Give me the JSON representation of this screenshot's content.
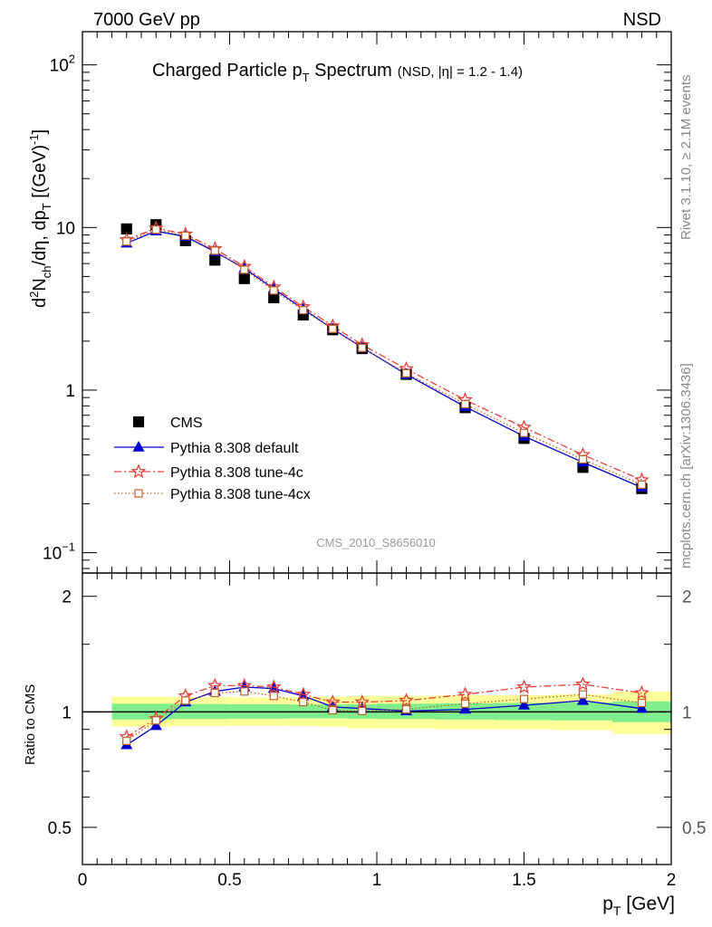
{
  "header": {
    "energy_label": "7000 GeV pp",
    "process_label": "NSD",
    "title_main": "Charged Particle p",
    "title_sub_T": "T",
    "title_tail": " Spectrum",
    "title_small": "(NSD, |η| = 1.2 - 1.4)",
    "analysis_id": "CMS_2010_S8656010",
    "side_rivet": "Rivet 3.1.10, ≥ 2.1M events",
    "side_mcplots": "mcplots.cern.ch [arXiv:1306.3436]"
  },
  "chart_data": [
    {
      "type": "scatter",
      "title": "Charged Particle pT Spectrum (NSD, |η| = 1.2 - 1.4)",
      "xlabel": "p_T [GeV]",
      "ylabel": "d²N_ch/dη dp_T [(GeV)⁻¹]",
      "yscale": "log",
      "xlim": [
        0,
        2
      ],
      "ylim": [
        0.075,
        160
      ],
      "y_tick_labels": [
        "10^-1",
        "1",
        "10",
        "10^2"
      ],
      "legend_position": "lower-left",
      "x": [
        0.15,
        0.25,
        0.35,
        0.45,
        0.55,
        0.65,
        0.75,
        0.85,
        0.95,
        1.1,
        1.3,
        1.5,
        1.7,
        1.9
      ],
      "series": [
        {
          "name": "CMS",
          "style": "black-square",
          "color": "#000000",
          "values": [
            9.8,
            10.4,
            8.3,
            6.3,
            4.85,
            3.7,
            2.9,
            2.35,
            1.8,
            1.25,
            0.78,
            0.505,
            0.335,
            0.248
          ]
        },
        {
          "name": "Pythia 8.308 default",
          "style": "blue-triangle-solid",
          "color": "#0000cc",
          "values": [
            8.0,
            9.5,
            8.8,
            7.1,
            5.6,
            4.2,
            3.15,
            2.38,
            1.83,
            1.25,
            0.79,
            0.52,
            0.36,
            0.252
          ]
        },
        {
          "name": "Pythia 8.308 tune-4c",
          "style": "red-star-dashdot",
          "color": "#e8403c",
          "values": [
            8.4,
            9.9,
            9.1,
            7.4,
            5.75,
            4.3,
            3.25,
            2.48,
            1.9,
            1.35,
            0.87,
            0.59,
            0.4,
            0.28
          ]
        },
        {
          "name": "Pythia 8.308 tune-4cx",
          "style": "orange-open-square-dotted",
          "color": "#c0602a",
          "values": [
            8.2,
            9.7,
            8.9,
            7.2,
            5.5,
            4.1,
            3.1,
            2.38,
            1.82,
            1.27,
            0.82,
            0.545,
            0.375,
            0.262
          ]
        }
      ]
    },
    {
      "type": "line",
      "title": "",
      "xlabel": "p_T [GeV]",
      "ylabel": "Ratio to CMS",
      "xlim": [
        0,
        2
      ],
      "ylim": [
        0.4,
        2.3
      ],
      "yscale": "log",
      "x_tick_labels": [
        "0",
        "0.5",
        "1",
        "1.5",
        "2"
      ],
      "y_tick_labels": [
        "0.5",
        "1",
        "2"
      ],
      "x": [
        0.15,
        0.25,
        0.35,
        0.45,
        0.55,
        0.65,
        0.75,
        0.85,
        0.95,
        1.1,
        1.3,
        1.5,
        1.7,
        1.9
      ],
      "bands": {
        "bin_edges": [
          0.1,
          0.2,
          0.3,
          0.4,
          0.5,
          0.6,
          0.7,
          0.8,
          0.9,
          1.0,
          1.2,
          1.4,
          1.6,
          1.8,
          2.0
        ],
        "stat_sys_green": [
          [
            0.955,
            1.05
          ],
          [
            0.955,
            1.05
          ],
          [
            0.958,
            1.048
          ],
          [
            0.958,
            1.048
          ],
          [
            0.96,
            1.046
          ],
          [
            0.96,
            1.046
          ],
          [
            0.962,
            1.045
          ],
          [
            0.962,
            1.045
          ],
          [
            0.96,
            1.047
          ],
          [
            0.958,
            1.05
          ],
          [
            0.955,
            1.052
          ],
          [
            0.952,
            1.055
          ],
          [
            0.95,
            1.058
          ],
          [
            0.94,
            1.065
          ]
        ],
        "total_yellow": [
          [
            0.915,
            1.095
          ],
          [
            0.915,
            1.095
          ],
          [
            0.918,
            1.092
          ],
          [
            0.918,
            1.092
          ],
          [
            0.92,
            1.09
          ],
          [
            0.92,
            1.09
          ],
          [
            0.918,
            1.093
          ],
          [
            0.915,
            1.095
          ],
          [
            0.905,
            1.1
          ],
          [
            0.905,
            1.1
          ],
          [
            0.9,
            1.105
          ],
          [
            0.9,
            1.105
          ],
          [
            0.895,
            1.11
          ],
          [
            0.875,
            1.13
          ]
        ]
      },
      "series": [
        {
          "name": "Pythia 8.308 default",
          "color": "#0000cc",
          "values": [
            0.82,
            0.92,
            1.06,
            1.13,
            1.16,
            1.15,
            1.1,
            1.03,
            1.02,
            1.005,
            1.015,
            1.04,
            1.07,
            1.02
          ]
        },
        {
          "name": "Pythia 8.308 tune-4c",
          "color": "#e8403c",
          "values": [
            0.86,
            0.96,
            1.1,
            1.17,
            1.17,
            1.16,
            1.11,
            1.06,
            1.06,
            1.07,
            1.11,
            1.16,
            1.18,
            1.12
          ]
        },
        {
          "name": "Pythia 8.308 tune-4cx",
          "color": "#c0602a",
          "values": [
            0.84,
            0.95,
            1.07,
            1.12,
            1.13,
            1.1,
            1.06,
            1.01,
            1.005,
            1.015,
            1.05,
            1.08,
            1.11,
            1.055
          ]
        }
      ]
    }
  ]
}
